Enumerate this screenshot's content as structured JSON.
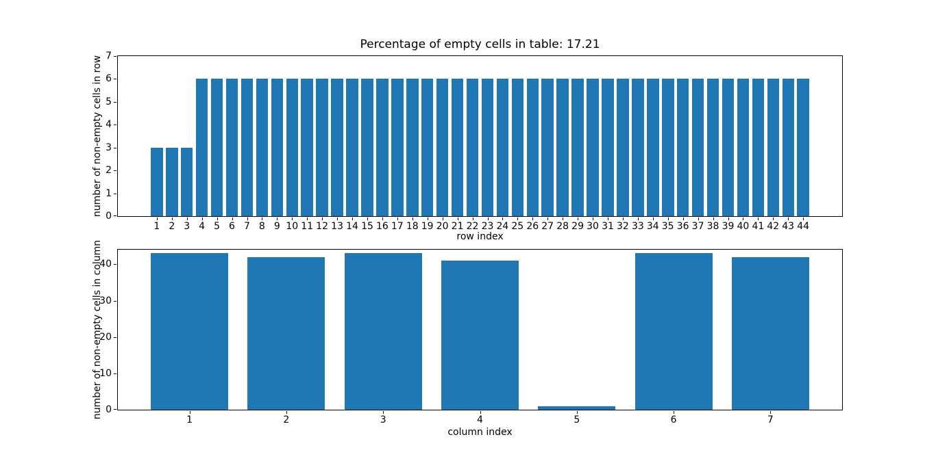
{
  "figure": {
    "background": "#ffffff",
    "bar_color": "#1f77b4",
    "axis_color": "#000000",
    "text_color": "#000000"
  },
  "chart_data": [
    {
      "type": "bar",
      "title": "Percentage of empty cells in table: 17.21",
      "xlabel": "row index",
      "ylabel": "number of non-empty cells in row",
      "categories": [
        1,
        2,
        3,
        4,
        5,
        6,
        7,
        8,
        9,
        10,
        11,
        12,
        13,
        14,
        15,
        16,
        17,
        18,
        19,
        20,
        21,
        22,
        23,
        24,
        25,
        26,
        27,
        28,
        29,
        30,
        31,
        32,
        33,
        34,
        35,
        36,
        37,
        38,
        39,
        40,
        41,
        42,
        43,
        44
      ],
      "values": [
        3,
        3,
        3,
        6,
        6,
        6,
        6,
        6,
        6,
        6,
        6,
        6,
        6,
        6,
        6,
        6,
        6,
        6,
        6,
        6,
        6,
        6,
        6,
        6,
        6,
        6,
        6,
        6,
        6,
        6,
        6,
        6,
        6,
        6,
        6,
        6,
        6,
        6,
        6,
        6,
        6,
        6,
        6,
        6
      ],
      "bar_width": 0.8,
      "xlim": [
        -1.59,
        46.59
      ],
      "ylim": [
        0,
        7
      ],
      "yticks": [
        0,
        1,
        2,
        3,
        4,
        5,
        6,
        7
      ],
      "grid": false,
      "legend": null
    },
    {
      "type": "bar",
      "title": "",
      "xlabel": "column index",
      "ylabel": "number of non-empty cells in column",
      "categories": [
        1,
        2,
        3,
        4,
        5,
        6,
        7
      ],
      "values": [
        43,
        42,
        43,
        41,
        1,
        43,
        42
      ],
      "bar_width": 0.8,
      "xlim": [
        0.26,
        7.74
      ],
      "ylim": [
        0,
        44
      ],
      "yticks": [
        0,
        10,
        20,
        30,
        40
      ],
      "grid": false,
      "legend": null
    }
  ]
}
